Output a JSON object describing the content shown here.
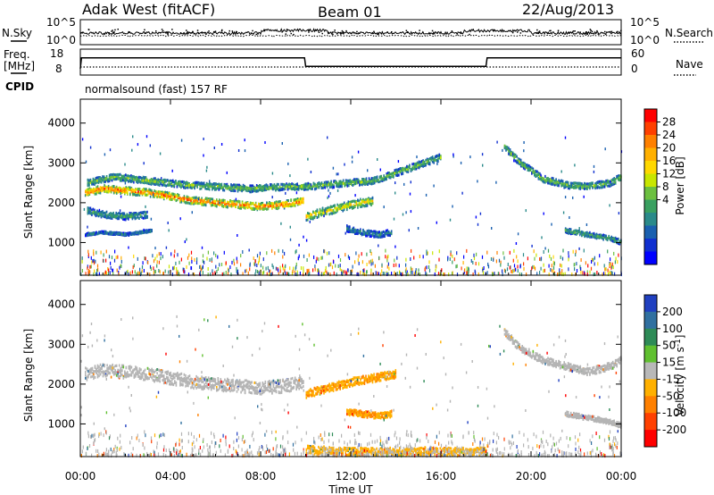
{
  "header": {
    "station": "Adak West (fitACF)",
    "beam": "Beam 01",
    "date": "22/Aug/2013"
  },
  "panel_labels": {
    "nsky": "N.Sky",
    "nsearch": "N.Search",
    "freq_line1": "Freq.",
    "freq_line2": "[MHz]",
    "nave": "Nave",
    "cpid": "CPID",
    "cpid_value": "normalsound (fast) 157 RF"
  },
  "noise_axis": {
    "left_ticks": [
      "10^5",
      "10^0"
    ],
    "right_ticks": [
      "10^5",
      "10^0"
    ]
  },
  "freq_axis": {
    "left_ticks": [
      "18",
      "8"
    ],
    "right_ticks": [
      "60",
      "0"
    ]
  },
  "chart_data": [
    {
      "type": "heatmap",
      "name_in_figure": "power",
      "ylabel": "Slant Range [km]",
      "y_ticks": [
        "4000",
        "3000",
        "2000",
        "1000"
      ],
      "x_ticks": [
        "00:00",
        "04:00",
        "08:00",
        "12:00",
        "16:00",
        "20:00",
        "00:00"
      ],
      "ylim": [
        180,
        4600
      ],
      "xlim_hours": [
        0,
        24
      ],
      "colorbar_label": "Power [dB]",
      "colorbar_ticks": [
        "28",
        "24",
        "20",
        "16",
        "12",
        "8",
        "4"
      ],
      "colorbar_colors": [
        "#ff0000",
        "#ff4000",
        "#ff8000",
        "#ffb000",
        "#ffd800",
        "#c8e600",
        "#6cc040",
        "#3aa060",
        "#2a8a8a",
        "#1a60b0",
        "#1030d0",
        "#0000ff"
      ],
      "bands": [
        {
          "name": "main-echo-band",
          "x": [
            0.2,
            1,
            2,
            3,
            4,
            5,
            6,
            7,
            8,
            9,
            9.9
          ],
          "y": [
            2250,
            2350,
            2300,
            2250,
            2150,
            2050,
            2000,
            1950,
            1900,
            1950,
            2050
          ],
          "width_km": 180,
          "power_db": 22
        },
        {
          "name": "upper-echo-band",
          "x": [
            0.3,
            1.5,
            3,
            4.5,
            6,
            7.5,
            9,
            10,
            11,
            12,
            13,
            14,
            15,
            16
          ],
          "y": [
            2500,
            2650,
            2550,
            2450,
            2400,
            2350,
            2400,
            2400,
            2450,
            2500,
            2550,
            2750,
            2950,
            3150
          ],
          "width_km": 160,
          "power_db": 12
        },
        {
          "name": "lower-echo-band",
          "x": [
            0.3,
            1,
            2,
            3
          ],
          "y": [
            1800,
            1700,
            1650,
            1700
          ],
          "width_km": 160,
          "power_db": 10
        },
        {
          "name": "recovery-band",
          "x": [
            10,
            11,
            12,
            13
          ],
          "y": [
            1650,
            1800,
            1950,
            2050
          ],
          "width_km": 200,
          "power_db": 16
        },
        {
          "name": "late-upper-band",
          "x": [
            18.8,
            19.5,
            20.5,
            21.5,
            22.5,
            23.5,
            24
          ],
          "y": [
            3400,
            3000,
            2600,
            2450,
            2400,
            2500,
            2650
          ],
          "width_km": 160,
          "power_db": 12
        },
        {
          "name": "late-lower-band",
          "x": [
            21.5,
            22.5,
            23.5,
            24
          ],
          "y": [
            1300,
            1200,
            1100,
            1000
          ],
          "width_km": 120,
          "power_db": 10
        },
        {
          "name": "patch-1300km",
          "x": [
            11.8,
            12.5,
            13.2,
            13.8
          ],
          "y": [
            1350,
            1250,
            1200,
            1250
          ],
          "width_km": 150,
          "power_db": 8
        },
        {
          "name": "low-band-1200km",
          "x": [
            0.2,
            1,
            2,
            3.2
          ],
          "y": [
            1200,
            1250,
            1200,
            1300
          ],
          "width_km": 60,
          "power_db": 8
        }
      ]
    },
    {
      "type": "heatmap",
      "name_in_figure": "velocity",
      "ylabel": "Slant Range [km]",
      "y_ticks": [
        "4000",
        "3000",
        "2000",
        "1000"
      ],
      "x_ticks": [
        "00:00",
        "04:00",
        "08:00",
        "12:00",
        "16:00",
        "20:00",
        "00:00"
      ],
      "xlabel": "Time UT",
      "ylim": [
        180,
        4600
      ],
      "xlim_hours": [
        0,
        24
      ],
      "colorbar_label": "Velocity [m s^-1]",
      "colorbar_label_main": "Velocity [m s",
      "colorbar_label_sup": "-1",
      "colorbar_label_close": "]",
      "colorbar_ticks": [
        "200",
        "100",
        "50",
        "15",
        "-15",
        "-50",
        "-100",
        "-200"
      ],
      "colorbar_colors": [
        "#2040c0",
        "#3070a0",
        "#2e8b57",
        "#60c030",
        "#b8b8b8",
        "#ffb000",
        "#ff8000",
        "#ff4000",
        "#ff0000"
      ],
      "ground_scatter_color": "#b4b4b4",
      "bands": [
        {
          "name": "grey-main-band",
          "x": [
            0.2,
            1,
            2,
            3,
            4,
            5,
            6,
            7,
            8,
            9,
            9.9
          ],
          "y": [
            2250,
            2350,
            2300,
            2250,
            2150,
            2050,
            2000,
            1950,
            1900,
            1950,
            2050
          ],
          "width_km": 320,
          "velocity": 0
        },
        {
          "name": "orange-recovery-band",
          "x": [
            10,
            11,
            12,
            13,
            14
          ],
          "y": [
            1750,
            1900,
            2050,
            2150,
            2250
          ],
          "width_km": 200,
          "velocity": -60
        },
        {
          "name": "orange-patch-1200km",
          "x": [
            11.8,
            12.5,
            13.2,
            13.8
          ],
          "y": [
            1300,
            1250,
            1200,
            1250
          ],
          "width_km": 150,
          "velocity": -60
        },
        {
          "name": "grey-late-upper",
          "x": [
            18.8,
            19.5,
            20.5,
            21.5,
            22.5,
            23.5,
            24
          ],
          "y": [
            3300,
            2900,
            2600,
            2450,
            2300,
            2450,
            2600
          ],
          "width_km": 180,
          "velocity": 0
        },
        {
          "name": "grey-late-lower",
          "x": [
            21.5,
            22.5,
            23.5,
            24
          ],
          "y": [
            1250,
            1150,
            1050,
            950
          ],
          "width_km": 120,
          "velocity": 0
        },
        {
          "name": "orange-near-range",
          "x": [
            10,
            12,
            14,
            16,
            18
          ],
          "y": [
            350,
            300,
            300,
            300,
            300
          ],
          "width_km": 200,
          "velocity": -40
        }
      ]
    }
  ],
  "frequency_series": {
    "x_hours": [
      0,
      0.05,
      9.95,
      10.0,
      18.0,
      18.05,
      24
    ],
    "freq_mhz": [
      9,
      14,
      14,
      10,
      10,
      14,
      14
    ]
  }
}
